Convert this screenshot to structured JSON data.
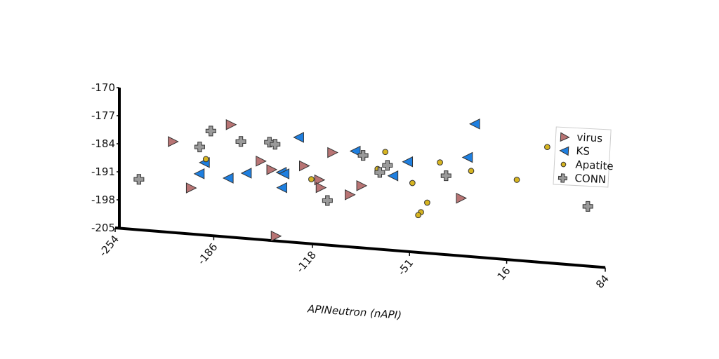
{
  "chart_data": {
    "type": "scatter",
    "x_label": "APINeutron (nAPI)",
    "xlim": [
      -254,
      84
    ],
    "xticks": [
      -254,
      -186,
      -118,
      -51,
      16,
      84
    ],
    "ylim": [
      -205,
      -170
    ],
    "yticks": [
      -170,
      -177,
      -184,
      -191,
      -198,
      -205
    ],
    "legend": "upper right",
    "series": [
      {
        "name": "virus",
        "color": "#b87474",
        "marker": "triangle-right",
        "x": [
          -214,
          -174,
          -201.5,
          -153.4,
          -146,
          -123.5,
          -113,
          -112,
          -104,
          -92,
          -84,
          -143,
          -15.3
        ],
        "values": [
          -182.3,
          -176.9,
          -193.5,
          -185.4,
          -187.3,
          -185.7,
          -188.9,
          -190.8,
          -181.8,
          -192,
          -189.5,
          -203.8,
          -190.6
        ]
      },
      {
        "name": "KS",
        "color": "#1e7fe0",
        "marker": "triangle-left",
        "x": [
          -127.4,
          -192.4,
          -196,
          -176,
          -163.5,
          -139.4,
          -137.5,
          -139,
          -88.4,
          -62.4,
          -52.3,
          -11,
          -6
        ],
        "values": [
          -178.7,
          -186.9,
          -189.8,
          -190.3,
          -188.7,
          -187.8,
          -188.1,
          -191.6,
          -181,
          -186.4,
          -182.6,
          -180.3,
          -171.8
        ]
      },
      {
        "name": "Apatite",
        "color": "#d6b420",
        "marker": "circle",
        "x": [
          -191.4,
          -118.7,
          -67.7,
          -73,
          -49,
          -30,
          -8.5,
          -38.8,
          -43.1,
          -45,
          23,
          44
        ],
        "values": [
          -186,
          -188.9,
          -180.6,
          -185,
          -187.8,
          -182.1,
          -183.6,
          -192.4,
          -194.9,
          -195.7,
          -184.9,
          -176.1
        ]
      },
      {
        "name": "CONN",
        "color": "#9a9a9a",
        "marker": "plus",
        "x": [
          -237.6,
          -188,
          -195.7,
          -167.3,
          -147.6,
          -143.7,
          -107.6,
          -83,
          -71.5,
          -66.2,
          -25.8,
          72
        ],
        "values": [
          -192.4,
          -178.9,
          -183.1,
          -180.9,
          -180.5,
          -180.9,
          -193.9,
          -181.9,
          -185.8,
          -183.9,
          -185.3,
          -190.1
        ]
      }
    ]
  }
}
